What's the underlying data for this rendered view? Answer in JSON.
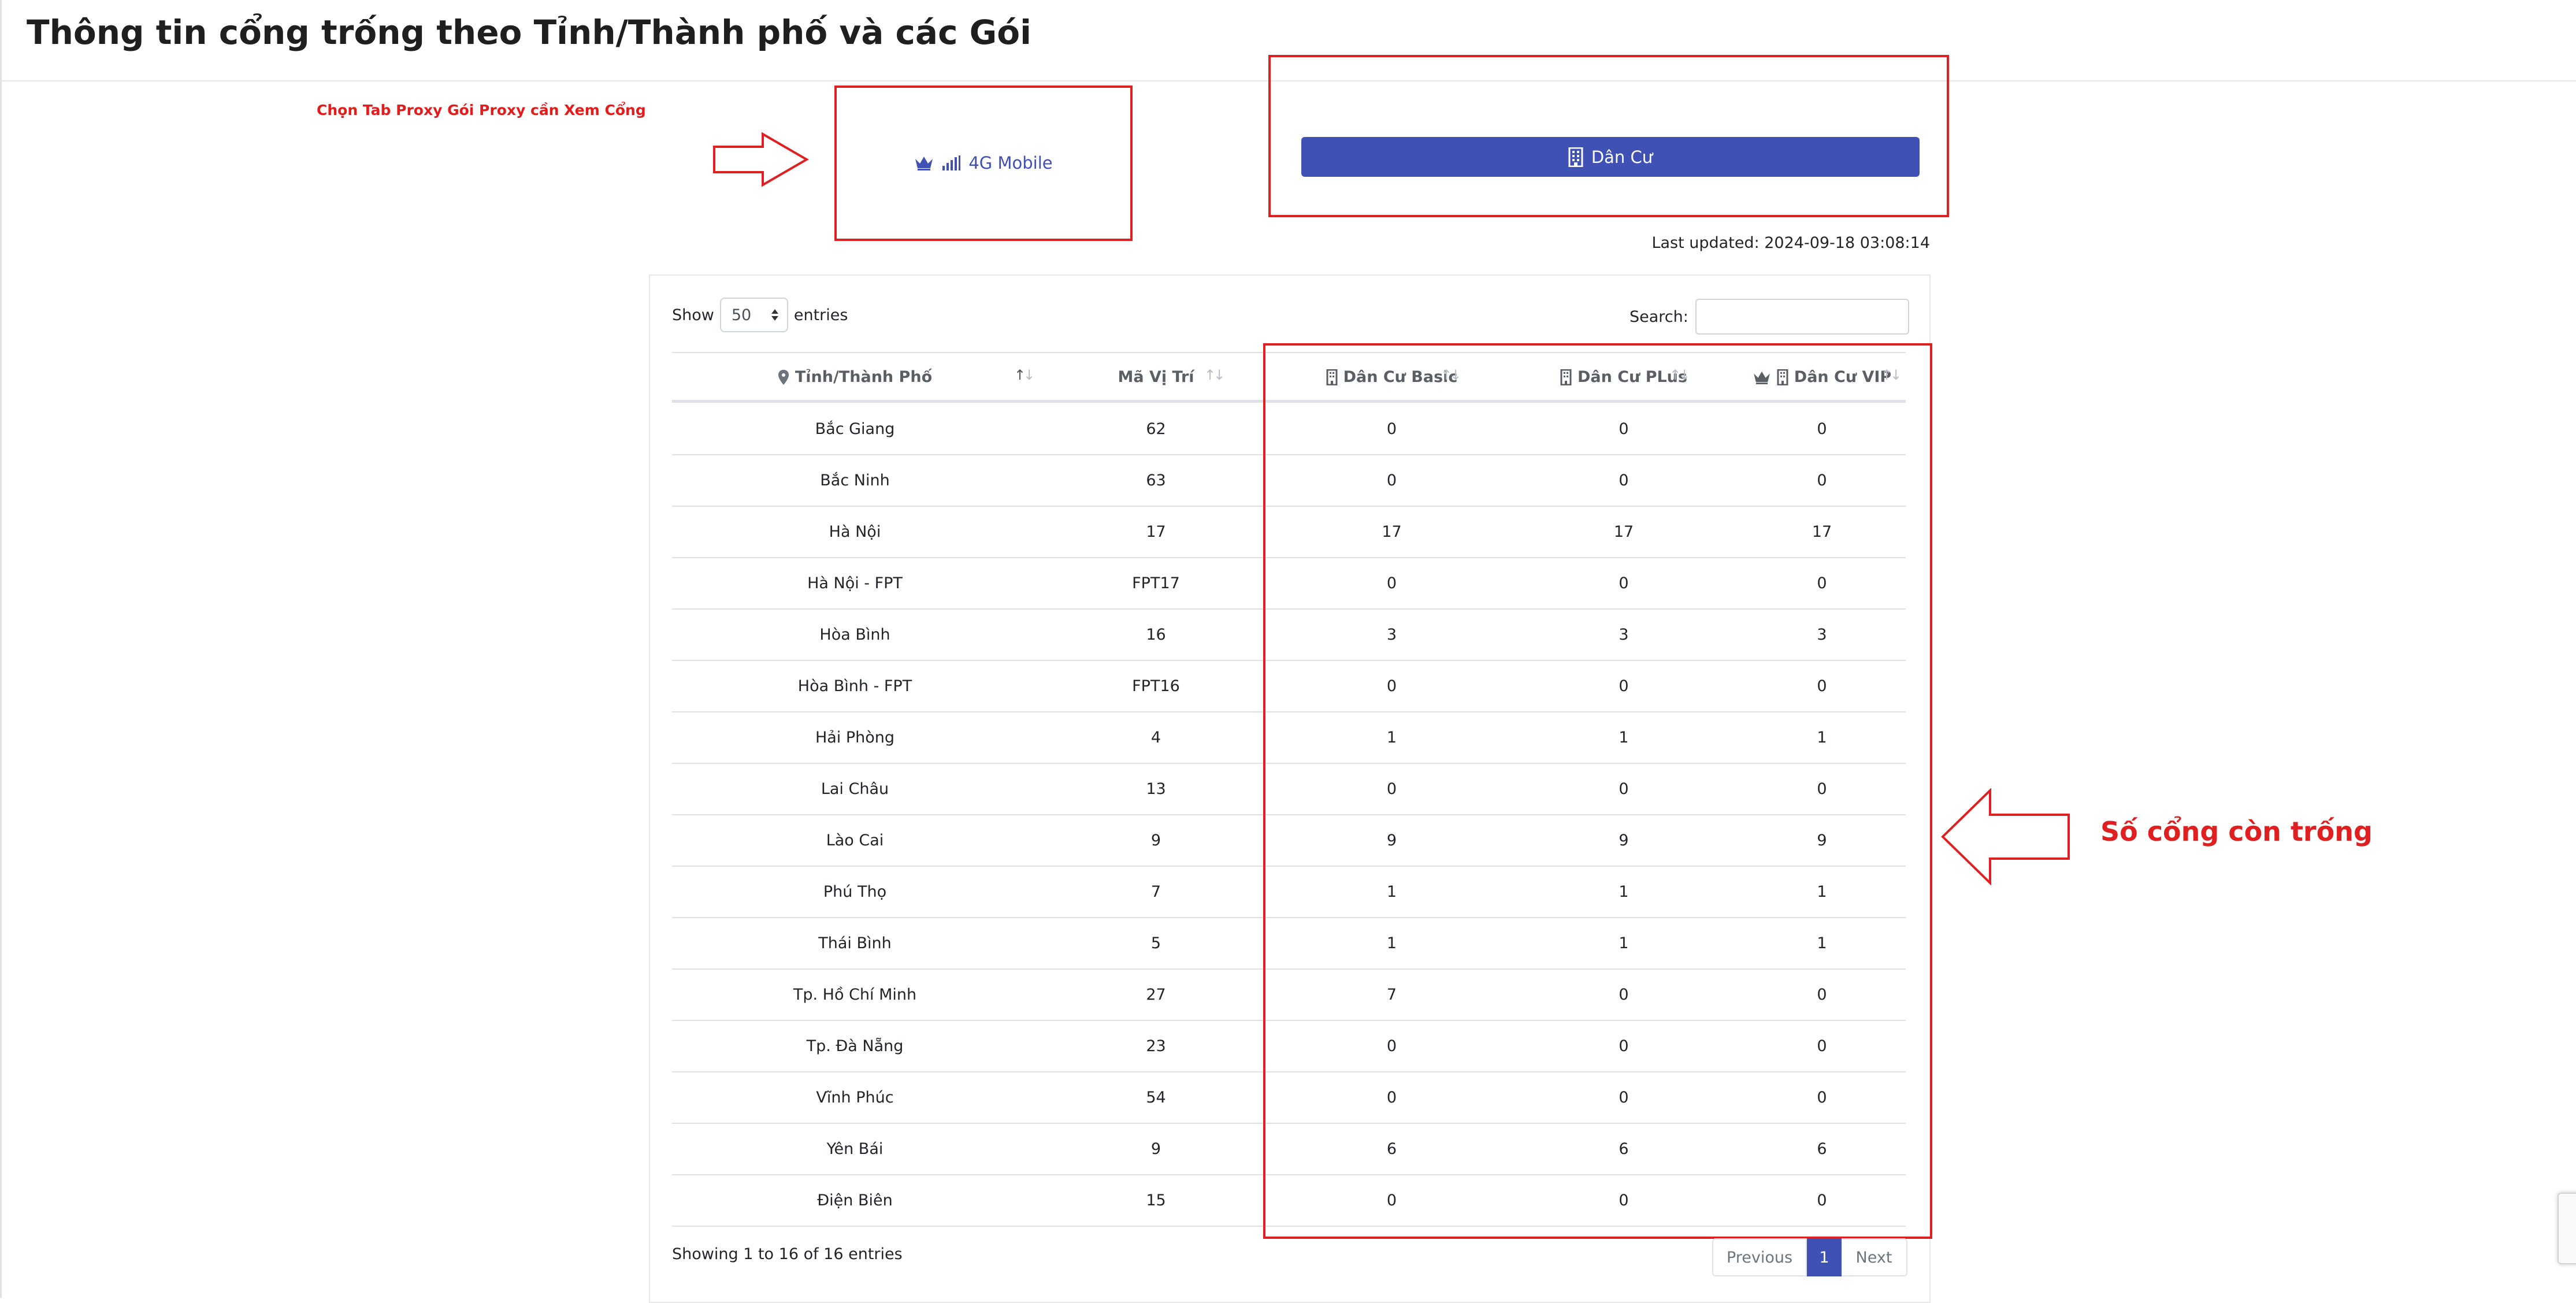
{
  "page": {
    "title": "Thông tin cổng trống theo Tỉnh/Thành phố và các Gói",
    "hint": "Chọn Tab Proxy Gói Proxy cần Xem Cổng",
    "annotation": "Số cổng còn trống"
  },
  "tabs": [
    {
      "label": "4G Mobile",
      "icon": "crown-signal-icon"
    },
    {
      "label": "Dân Cư",
      "icon": "building-icon"
    }
  ],
  "last_updated": "Last updated: 2024-09-18 03:08:14",
  "table": {
    "show_label": "Show",
    "entries_label": "entries",
    "page_size": "50",
    "search_label": "Search:",
    "search_value": "",
    "columns": [
      "Tỉnh/Thành Phố",
      "Mã Vị Trí",
      "Dân Cư Basic",
      "Dân Cư PLus",
      "Dân Cư VIP"
    ],
    "rows": [
      [
        "Bắc Giang",
        "62",
        "0",
        "0",
        "0"
      ],
      [
        "Bắc Ninh",
        "63",
        "0",
        "0",
        "0"
      ],
      [
        "Hà Nội",
        "17",
        "17",
        "17",
        "17"
      ],
      [
        "Hà Nội - FPT",
        "FPT17",
        "0",
        "0",
        "0"
      ],
      [
        "Hòa Bình",
        "16",
        "3",
        "3",
        "3"
      ],
      [
        "Hòa Bình - FPT",
        "FPT16",
        "0",
        "0",
        "0"
      ],
      [
        "Hải Phòng",
        "4",
        "1",
        "1",
        "1"
      ],
      [
        "Lai Châu",
        "13",
        "0",
        "0",
        "0"
      ],
      [
        "Lào Cai",
        "9",
        "9",
        "9",
        "9"
      ],
      [
        "Phú Thọ",
        "7",
        "1",
        "1",
        "1"
      ],
      [
        "Thái Bình",
        "5",
        "1",
        "1",
        "1"
      ],
      [
        "Tp. Hồ Chí Minh",
        "27",
        "7",
        "0",
        "0"
      ],
      [
        "Tp. Đà Nẵng",
        "23",
        "0",
        "0",
        "0"
      ],
      [
        "Vĩnh Phúc",
        "54",
        "0",
        "0",
        "0"
      ],
      [
        "Yên Bái",
        "9",
        "6",
        "6",
        "6"
      ],
      [
        "Điện Biên",
        "15",
        "0",
        "0",
        "0"
      ]
    ],
    "info": "Showing 1 to 16 of 16 entries",
    "pagination": {
      "previous": "Previous",
      "current": "1",
      "next": "Next"
    }
  },
  "colors": {
    "accent": "#3f51b5",
    "annotation_red": "#e02020"
  }
}
